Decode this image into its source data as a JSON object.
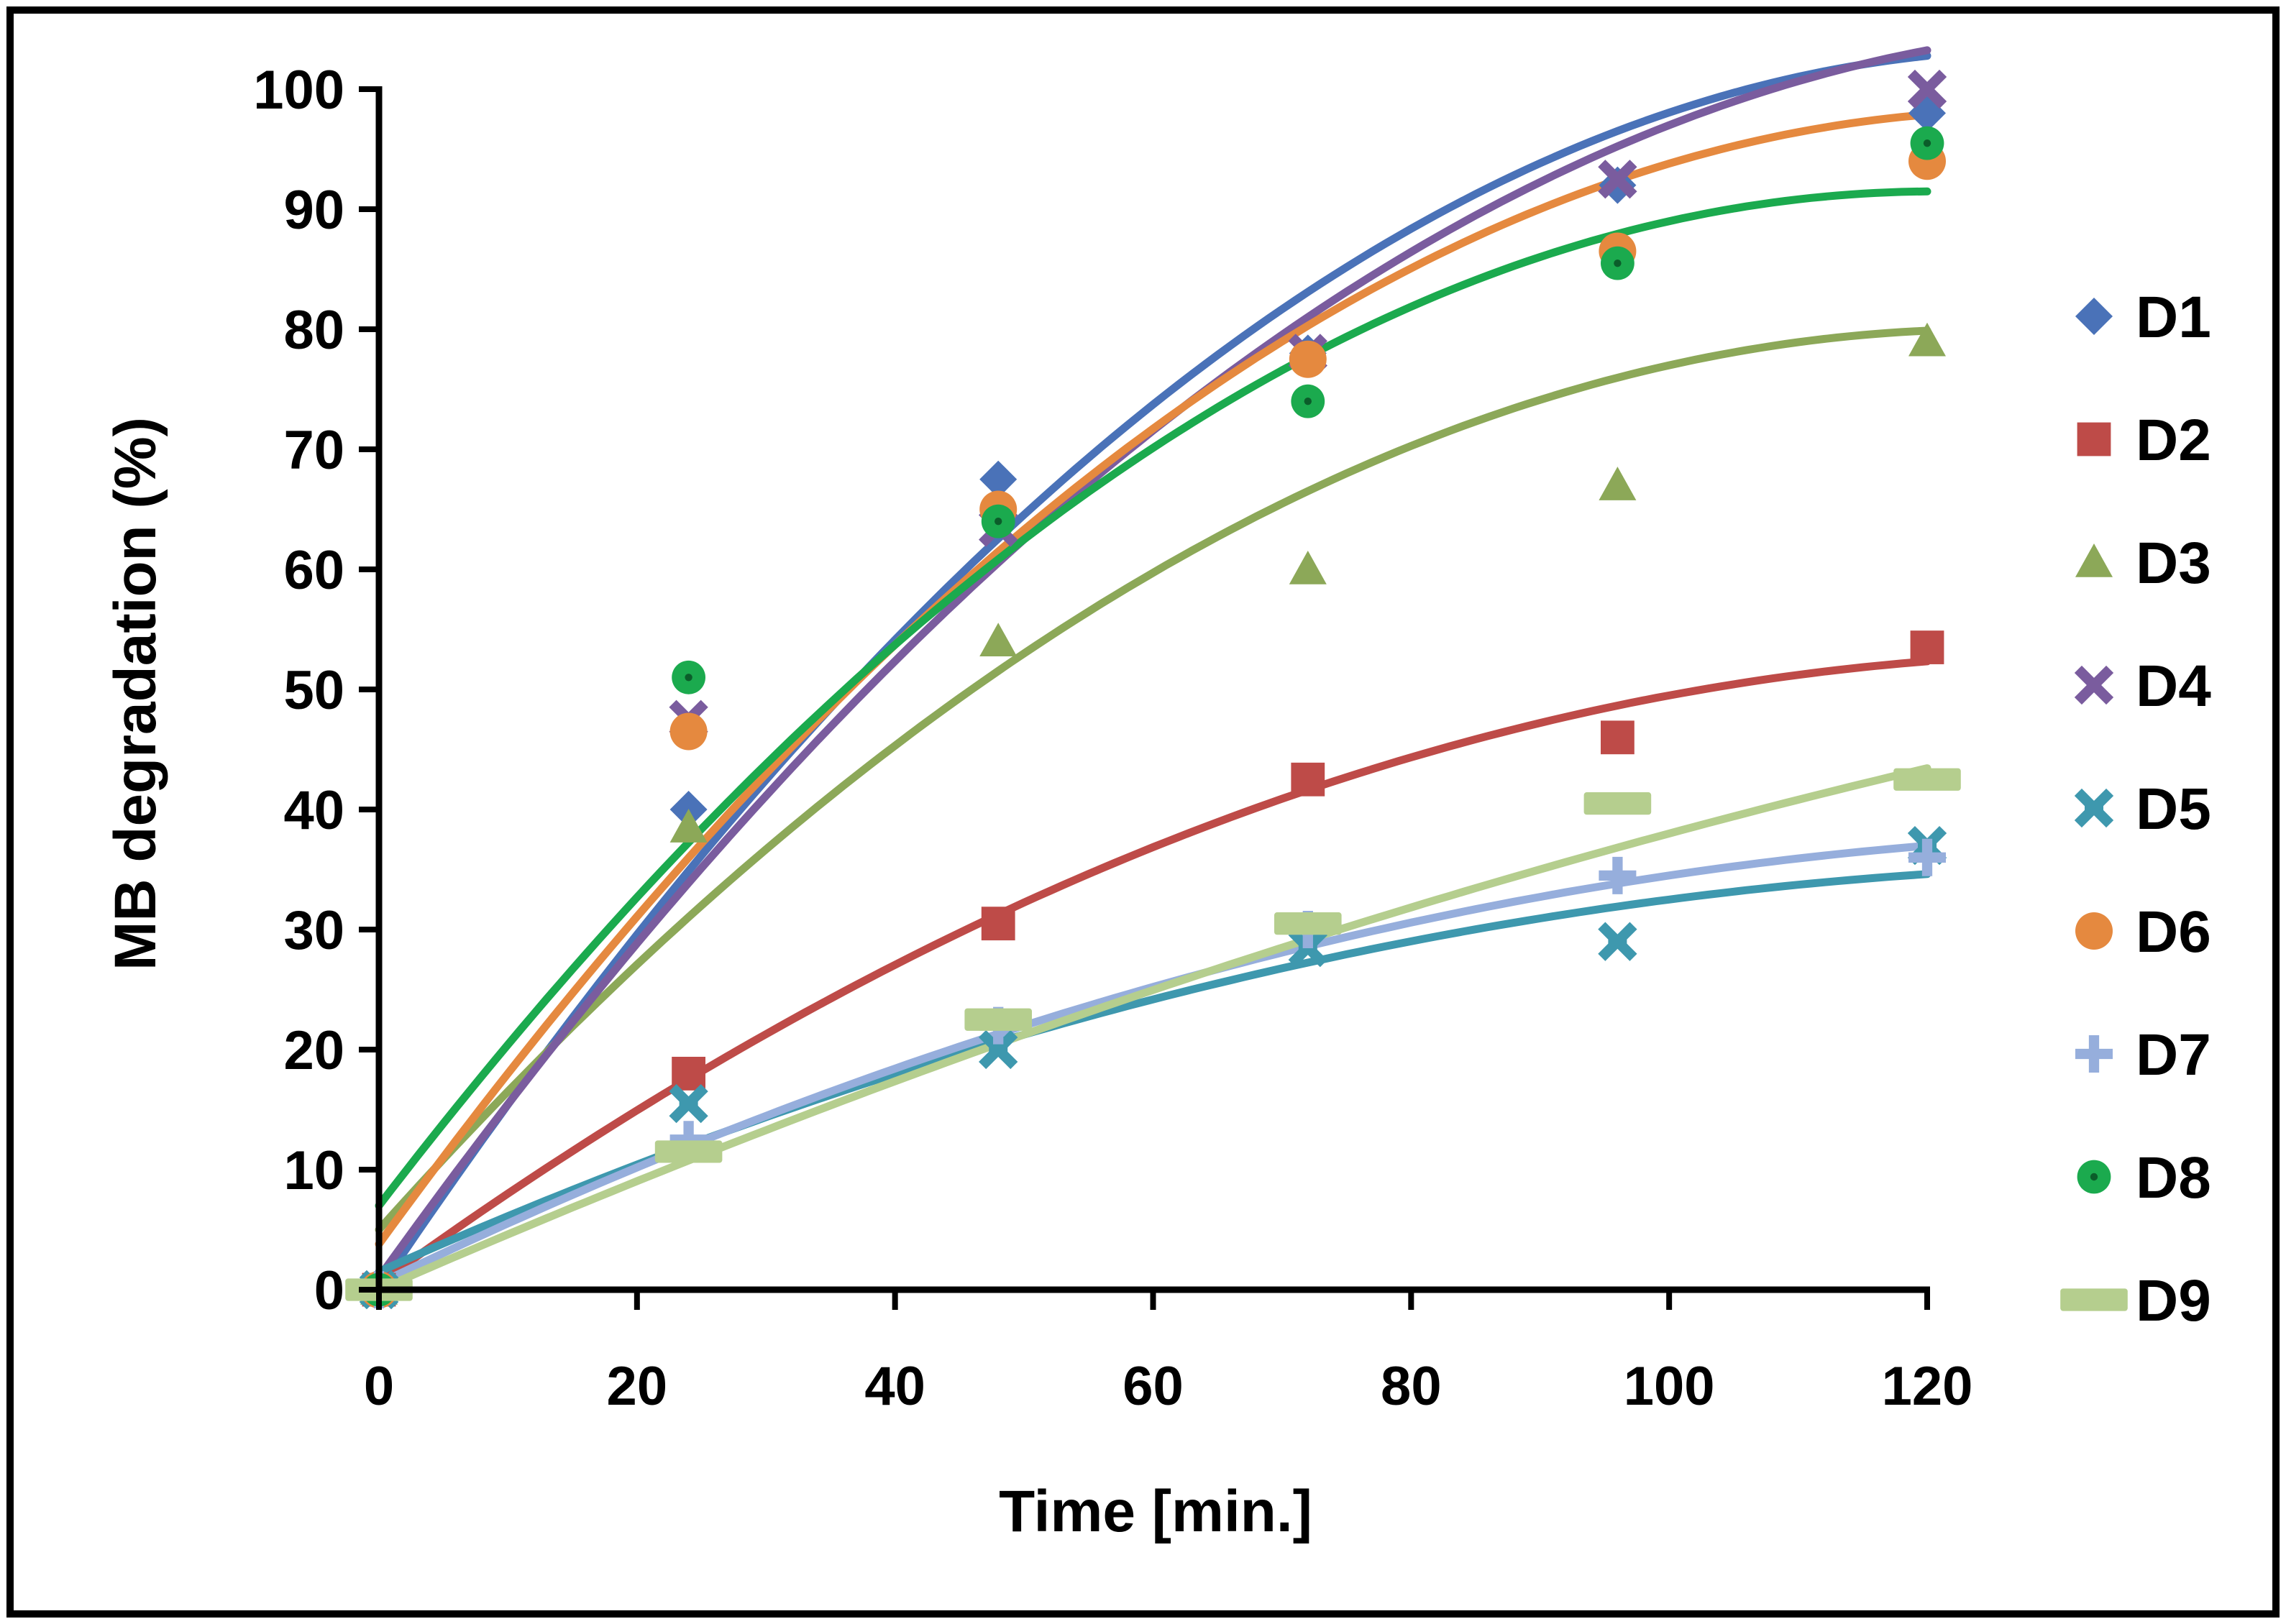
{
  "chart_data": {
    "type": "scatter",
    "title": "",
    "xlabel": "Time [min.]",
    "ylabel": "MB degradation (%)",
    "xlim": [
      0,
      120
    ],
    "ylim": [
      0,
      100
    ],
    "xticks": [
      0,
      20,
      40,
      60,
      80,
      100,
      120
    ],
    "yticks": [
      0,
      10,
      20,
      30,
      40,
      50,
      60,
      70,
      80,
      90,
      100
    ],
    "grid": false,
    "legend_position": "right",
    "trendline": "polynomial (order 2)",
    "x": [
      0,
      24,
      48,
      72,
      96,
      120
    ],
    "series": [
      {
        "name": "D1",
        "marker": "diamond",
        "color": "#4A72B8",
        "values": [
          0,
          40,
          67.5,
          78,
          92,
          98
        ],
        "fit": [
          0.05,
          1.6,
          -0.0062
        ]
      },
      {
        "name": "D2",
        "marker": "square",
        "color": "#BE4B48",
        "values": [
          0,
          18,
          30.5,
          42.5,
          46,
          53.5
        ],
        "fit": [
          0.5,
          0.78,
          -0.0029
        ]
      },
      {
        "name": "D3",
        "marker": "triangle",
        "color": "#8CA858",
        "values": [
          0,
          38.5,
          54,
          60,
          67,
          79
        ],
        "fit": [
          5,
          1.2,
          -0.0048
        ]
      },
      {
        "name": "D4",
        "marker": "x",
        "color": "#7A5C9E",
        "values": [
          0,
          47.5,
          63.5,
          78,
          92.5,
          100
        ],
        "fit": [
          1.0,
          1.5,
          -0.0054
        ]
      },
      {
        "name": "D5",
        "marker": "star",
        "color": "#3E98AE",
        "values": [
          0,
          15.5,
          20,
          28.5,
          29,
          37
        ],
        "fit": [
          1.5,
          0.48,
          -0.0017
        ]
      },
      {
        "name": "D6",
        "marker": "circle",
        "color": "#E5893F",
        "values": [
          0,
          46.5,
          65,
          77.5,
          86.5,
          94
        ],
        "fit": [
          3.8,
          1.48,
          -0.0058
        ]
      },
      {
        "name": "D7",
        "marker": "plus",
        "color": "#96AEDC",
        "values": [
          0,
          12.5,
          22,
          30,
          34.5,
          36
        ],
        "fit": [
          0.5,
          0.52,
          -0.0018
        ]
      },
      {
        "name": "D8",
        "marker": "dot-circle",
        "color": "#1BAA4E",
        "values": [
          0,
          51,
          64,
          74,
          85.5,
          95.5
        ],
        "fit": [
          7,
          1.4,
          -0.0058
        ]
      },
      {
        "name": "D9",
        "marker": "dash",
        "color": "#B5CE8E",
        "values": [
          0,
          11.5,
          22.5,
          30.5,
          40.5,
          42.5
        ],
        "fit": [
          0,
          0.47,
          -0.0009
        ]
      }
    ]
  }
}
